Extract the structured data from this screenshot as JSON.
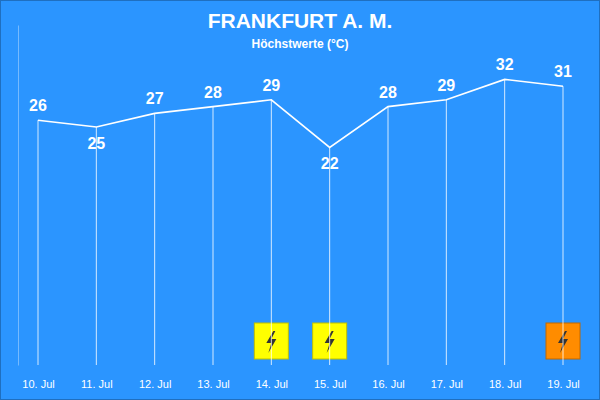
{
  "chart_data": {
    "type": "line",
    "title": "FRANKFURT A. M.",
    "subtitle": "Höchstwerte (°C)",
    "categories": [
      "10. Jul",
      "11. Jul",
      "12. Jul",
      "13. Jul",
      "14. Jul",
      "15. Jul",
      "16. Jul",
      "17. Jul",
      "18. Jul",
      "19. Jul"
    ],
    "values": [
      26,
      25,
      27,
      28,
      29,
      22,
      28,
      29,
      32,
      31
    ],
    "color": "#ffffff",
    "ylim": [
      -10,
      40
    ],
    "yticks": [],
    "tick_labels": "x",
    "data_labels": true,
    "grid": true,
    "annotations": [
      {
        "x": "14. Jul",
        "color": "#ffff00"
      },
      {
        "x": "15. Jul",
        "color": "#ffff00"
      },
      {
        "x": "19. Jul",
        "color": "#ff8c00"
      }
    ]
  }
}
